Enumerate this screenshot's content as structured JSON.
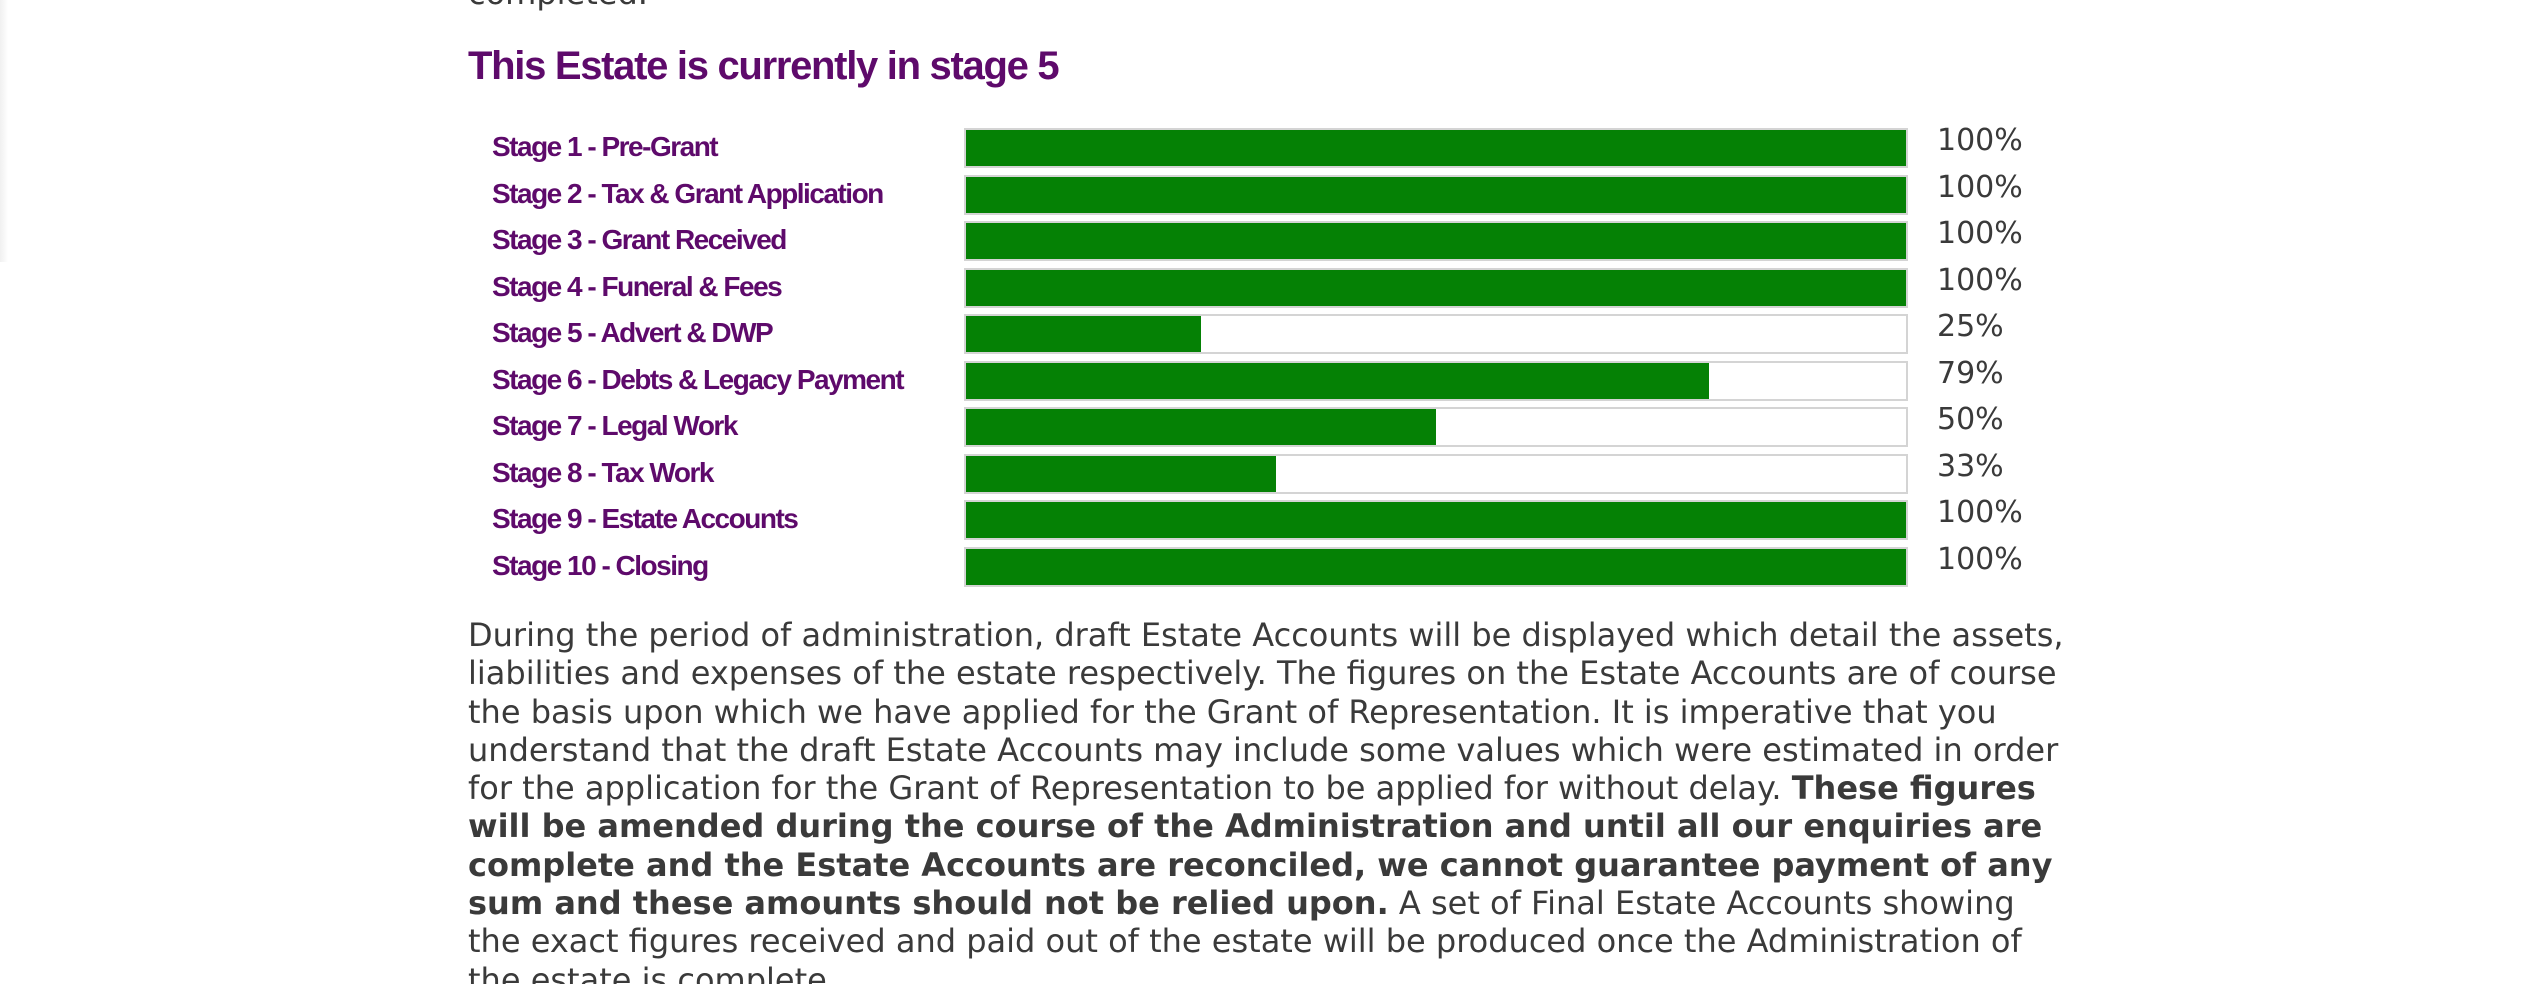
{
  "intro": {
    "fragment": "completed."
  },
  "progress": {
    "heading": "This Estate is currently in stage 5",
    "bar_color": "#058105",
    "heading_color": "#5e0a6b",
    "stages": [
      {
        "label": "Stage 1 - Pre-Grant",
        "value": 100,
        "percent": "100%"
      },
      {
        "label": "Stage 2 - Tax & Grant Application",
        "value": 100,
        "percent": "100%"
      },
      {
        "label": "Stage 3 - Grant Received",
        "value": 100,
        "percent": "100%"
      },
      {
        "label": "Stage 4 - Funeral & Fees",
        "value": 100,
        "percent": "100%"
      },
      {
        "label": "Stage 5 - Advert & DWP",
        "value": 25,
        "percent": "25%"
      },
      {
        "label": "Stage 6 - Debts & Legacy Payment",
        "value": 79,
        "percent": "79%"
      },
      {
        "label": "Stage 7 - Legal Work",
        "value": 50,
        "percent": "50%"
      },
      {
        "label": "Stage 8 - Tax Work",
        "value": 33,
        "percent": "33%"
      },
      {
        "label": "Stage 9 - Estate Accounts",
        "value": 100,
        "percent": "100%"
      },
      {
        "label": "Stage 10 - Closing",
        "value": 100,
        "percent": "100%"
      }
    ]
  },
  "notice": {
    "text_before": "During the period of administration, draft Estate Accounts will be displayed which detail the assets, liabilities and expenses of the estate respectively. The figures on the Estate Accounts are of course the basis upon which we have applied for the Grant of Representation. It is imperative that you understand that the draft Estate Accounts may include some values which were estimated in order for the application for the Grant of Representation to be applied for without delay. ",
    "bold_text": "These figures will be amended during the course of the Administration and until all our enquiries are complete and the Estate Accounts are reconciled, we cannot guarantee payment of any sum and these amounts should not be relied upon.",
    "text_after": " A set of Final Estate Accounts showing the exact figures received and paid out of the estate will be produced once the Administration of the estate is complete."
  }
}
